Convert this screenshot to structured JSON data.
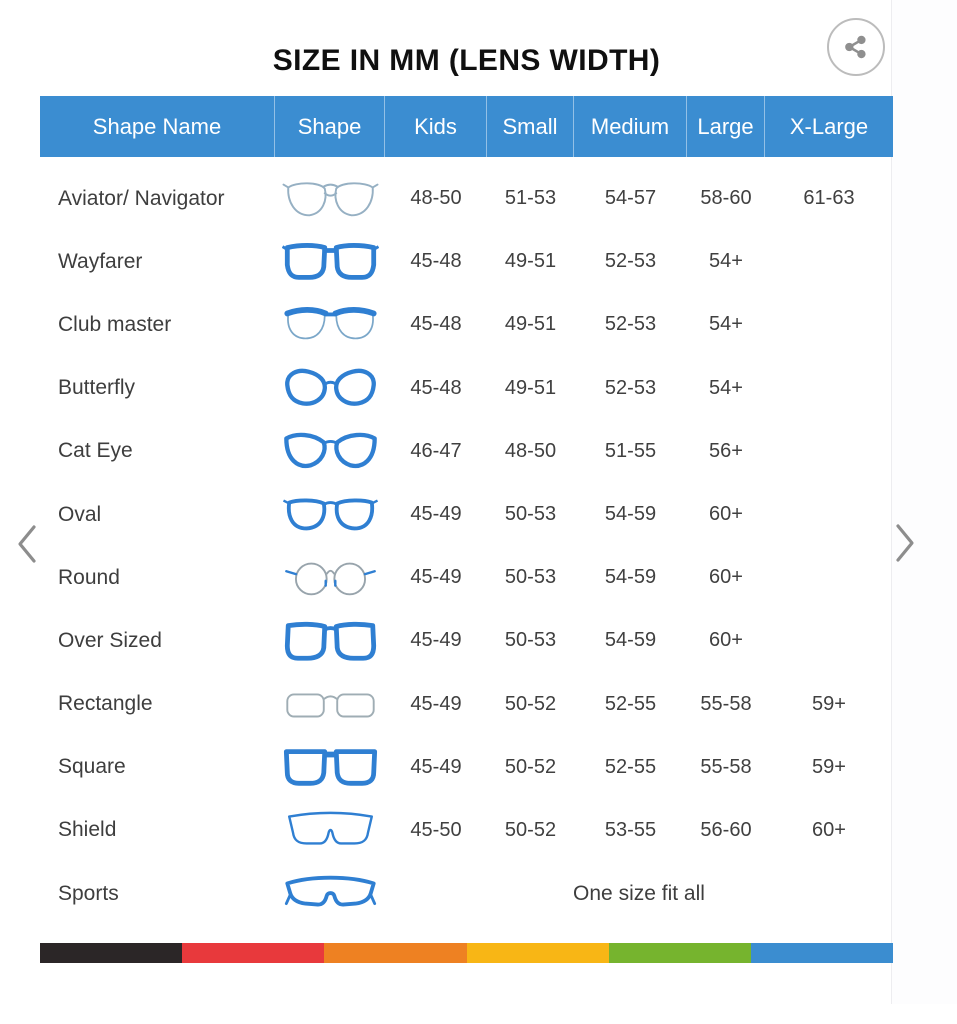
{
  "title": "SIZE IN MM (LENS WIDTH)",
  "share": {
    "icon": "share-icon"
  },
  "carousel": {
    "prev_icon": "chevron-left-icon",
    "next_icon": "chevron-right-icon"
  },
  "colors": {
    "header_bg": "#3b8dd1",
    "accent_blue": "#2f7fd2",
    "title_text": "#101010",
    "body_text": "#3f3f3f",
    "share_gray": "#8f8f8f",
    "footer_bar": [
      "#2b2627",
      "#e8393c",
      "#ee8122",
      "#f8b615",
      "#76b42e",
      "#3b8dd0"
    ]
  },
  "table": {
    "columns": [
      "Shape Name",
      "Shape",
      "Kids",
      "Small",
      "Medium",
      "Large",
      "X-Large"
    ],
    "rows": [
      {
        "name": "Aviator/ Navigator",
        "icon": "aviator",
        "sizes": [
          "48-50",
          "51-53",
          "54-57",
          "58-60",
          "61-63"
        ]
      },
      {
        "name": "Wayfarer",
        "icon": "wayfarer",
        "sizes": [
          "45-48",
          "49-51",
          "52-53",
          "54+",
          ""
        ]
      },
      {
        "name": "Club master",
        "icon": "clubmaster",
        "sizes": [
          "45-48",
          "49-51",
          "52-53",
          "54+",
          ""
        ]
      },
      {
        "name": "Butterfly",
        "icon": "butterfly",
        "sizes": [
          "45-48",
          "49-51",
          "52-53",
          "54+",
          ""
        ]
      },
      {
        "name": "Cat Eye",
        "icon": "cateye",
        "sizes": [
          "46-47",
          "48-50",
          "51-55",
          "56+",
          ""
        ]
      },
      {
        "name": "Oval",
        "icon": "oval",
        "sizes": [
          "45-49",
          "50-53",
          "54-59",
          "60+",
          ""
        ]
      },
      {
        "name": "Round",
        "icon": "round",
        "sizes": [
          "45-49",
          "50-53",
          "54-59",
          "60+",
          ""
        ]
      },
      {
        "name": "Over Sized",
        "icon": "oversized",
        "sizes": [
          "45-49",
          "50-53",
          "54-59",
          "60+",
          ""
        ]
      },
      {
        "name": "Rectangle",
        "icon": "rectangle",
        "sizes": [
          "45-49",
          "50-52",
          "52-55",
          "55-58",
          "59+"
        ]
      },
      {
        "name": "Square",
        "icon": "square",
        "sizes": [
          "45-49",
          "50-52",
          "52-55",
          "55-58",
          "59+"
        ]
      },
      {
        "name": "Shield",
        "icon": "shield",
        "sizes": [
          "45-50",
          "50-52",
          "53-55",
          "56-60",
          "60+"
        ]
      },
      {
        "name": "Sports",
        "icon": "sports",
        "span_text": "One size fit all"
      }
    ]
  }
}
